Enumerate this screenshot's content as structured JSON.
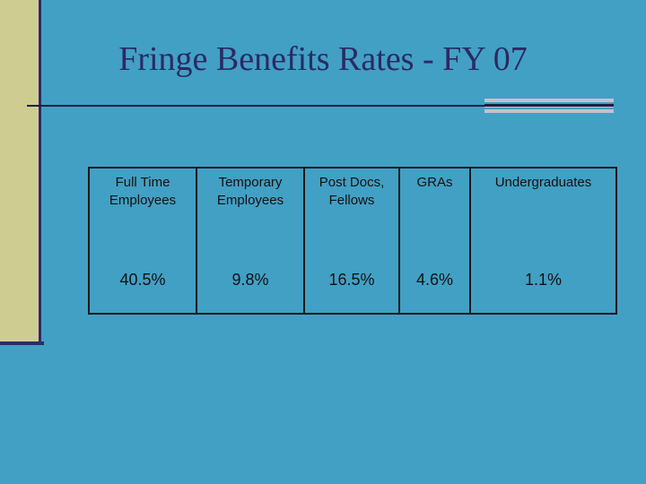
{
  "slide": {
    "title": "Fringe Benefits Rates - FY 07"
  },
  "table": {
    "headers": [
      "Full Time Employees",
      "Temporary Employees",
      "Post Docs, Fellows",
      "GRAs",
      "Undergraduates"
    ],
    "header_lines": [
      [
        "Full Time",
        "Employees"
      ],
      [
        "Temporary",
        "Employees"
      ],
      [
        "Post Docs,",
        "Fellows"
      ],
      [
        "GRAs"
      ],
      [
        "Undergraduates"
      ]
    ],
    "rates": [
      "40.5%",
      "9.8%",
      "16.5%",
      "4.6%",
      "1.1%"
    ]
  },
  "colors": {
    "background": "#42a0c4",
    "left_bar": "#cfcc92",
    "title": "#2b2a64",
    "rule": "#1d1f46"
  }
}
